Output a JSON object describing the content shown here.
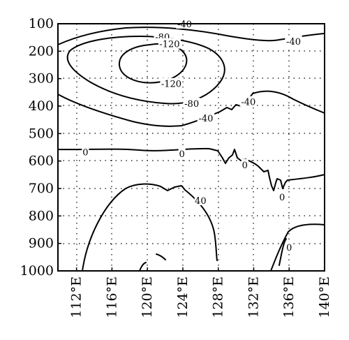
{
  "chart_data": {
    "type": "contour",
    "title": "",
    "xlabel": "",
    "ylabel": "",
    "grid": true,
    "x_ticks": [
      "112°E",
      "116°E",
      "120°E",
      "124°E",
      "128°E",
      "132°E",
      "136°E",
      "140°E"
    ],
    "x_tick_values": [
      112,
      116,
      120,
      124,
      128,
      132,
      136,
      140
    ],
    "y_ticks": [
      "100",
      "200",
      "300",
      "400",
      "500",
      "600",
      "700",
      "800",
      "900",
      "1000"
    ],
    "y_tick_values": [
      100,
      200,
      300,
      400,
      500,
      600,
      700,
      800,
      900,
      1000
    ],
    "xlim": [
      109.9,
      140
    ],
    "ylim": [
      1000,
      100
    ],
    "contour_labels": [
      {
        "text": "-40",
        "x": 124.2,
        "y": 100
      },
      {
        "text": "-80",
        "x": 121.7,
        "y": 147
      },
      {
        "text": "-120",
        "x": 122.5,
        "y": 173
      },
      {
        "text": "-40",
        "x": 136.5,
        "y": 164
      },
      {
        "text": "-120",
        "x": 122.7,
        "y": 318
      },
      {
        "text": "-40",
        "x": 131.4,
        "y": 384
      },
      {
        "text": "-80",
        "x": 125.0,
        "y": 390
      },
      {
        "text": "-40",
        "x": 126.6,
        "y": 443
      },
      {
        "text": "0",
        "x": 113.0,
        "y": 566
      },
      {
        "text": "0",
        "x": 123.9,
        "y": 573
      },
      {
        "text": "0",
        "x": 131.0,
        "y": 613
      },
      {
        "text": "0",
        "x": 135.2,
        "y": 730
      },
      {
        "text": "40",
        "x": 126.0,
        "y": 743
      },
      {
        "text": "0",
        "x": 136.0,
        "y": 914
      }
    ]
  }
}
